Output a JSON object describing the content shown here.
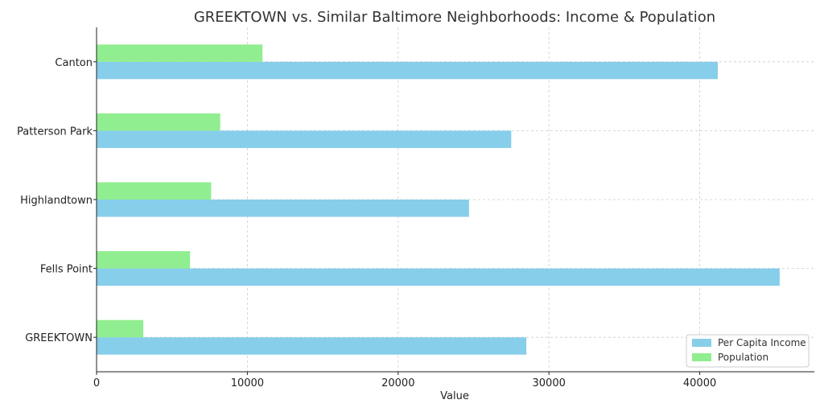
{
  "chart_data": {
    "type": "bar",
    "orientation": "horizontal",
    "title": "GREEKTOWN vs. Similar Baltimore Neighborhoods: Income & Population",
    "xlabel": "Value",
    "ylabel": "",
    "categories": [
      "GREEKTOWN",
      "Fells Point",
      "Highlandtown",
      "Patterson Park",
      "Canton"
    ],
    "series": [
      {
        "name": "Per Capita Income",
        "color": "#87CEEB",
        "values": [
          28500,
          45300,
          24700,
          27500,
          41200
        ]
      },
      {
        "name": "Population",
        "color": "#90EE90",
        "values": [
          3100,
          6200,
          7600,
          8200,
          11000
        ]
      }
    ],
    "xlim": [
      0,
      47600
    ],
    "xticks": [
      0,
      10000,
      20000,
      30000,
      40000
    ],
    "xtick_labels": [
      "0",
      "10000",
      "20000",
      "30000",
      "40000"
    ],
    "grid": true,
    "legend_position": "lower-right"
  }
}
